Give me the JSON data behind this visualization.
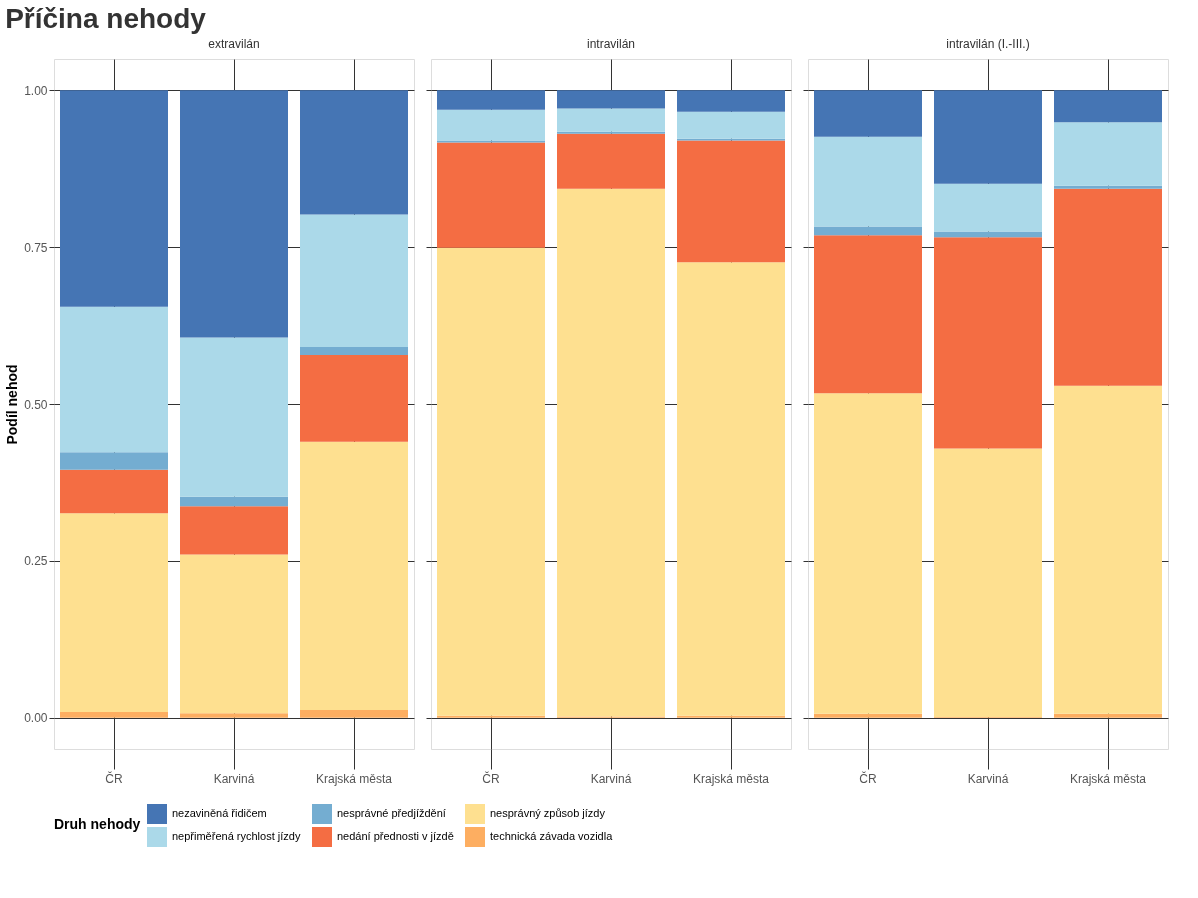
{
  "chart_data": [
    {
      "type": "bar",
      "stacked": true,
      "title": "Příčina nehody",
      "subtitle": "extravilán",
      "ylabel": "Podíl nehod",
      "legend_title": "Druh nehody",
      "legend": "bottom",
      "grid": true,
      "categories": [
        "ČR",
        "Karviná",
        "Krajská města"
      ],
      "ylim": [
        -0.05,
        1.05
      ],
      "yticks": [
        {
          "value": 0,
          "label": "0.00"
        },
        {
          "value": 0.25,
          "label": "0.25"
        },
        {
          "value": 0.5,
          "label": "0.50"
        },
        {
          "value": 0.75,
          "label": "0.75"
        },
        {
          "value": 1,
          "label": "1.00"
        }
      ],
      "series": [
        {
          "name": "technická závada vozidla",
          "color": "#fdae61",
          "values": [
            0.009,
            0.007,
            0.012
          ]
        },
        {
          "name": "nesprávný způsob jízdy",
          "color": "#fee090",
          "values": [
            0.317,
            0.253,
            0.428
          ]
        },
        {
          "name": "nedání přednosti v jízdě",
          "color": "#f46d43",
          "values": [
            0.069,
            0.077,
            0.138
          ]
        },
        {
          "name": "nesprávné předjíždění",
          "color": "#74add1",
          "values": [
            0.028,
            0.015,
            0.013
          ]
        },
        {
          "name": "nepřiměřená rychlost jízdy",
          "color": "#abd9e9",
          "values": [
            0.232,
            0.254,
            0.211
          ]
        },
        {
          "name": "nezaviněná řidičem",
          "color": "#4575b4",
          "values": [
            0.345,
            0.394,
            0.198
          ]
        }
      ]
    },
    {
      "type": "bar",
      "stacked": true,
      "subtitle": "intravilán",
      "legend": "bottom",
      "grid": true,
      "tick_labels": "x",
      "categories": [
        "ČR",
        "Karviná",
        "Krajská města"
      ],
      "ylim": [
        -0.05,
        1.05
      ],
      "yticks": [
        {
          "value": 0,
          "label": null
        },
        {
          "value": 0.25,
          "label": null
        },
        {
          "value": 0.5,
          "label": null
        },
        {
          "value": 0.75,
          "label": null
        },
        {
          "value": 1,
          "label": null
        }
      ],
      "series": [
        {
          "name": "technická závada vozidla",
          "color": "#fdae61",
          "values": [
            0.003,
            0.002,
            0.003
          ]
        },
        {
          "name": "nesprávný způsob jízdy",
          "color": "#fee090",
          "values": [
            0.746,
            0.841,
            0.723
          ]
        },
        {
          "name": "nedání přednosti v jízdě",
          "color": "#f46d43",
          "values": [
            0.168,
            0.088,
            0.194
          ]
        },
        {
          "name": "nesprávné předjíždění",
          "color": "#74add1",
          "values": [
            0.003,
            0.003,
            0.003
          ]
        },
        {
          "name": "nepřiměřená rychlost jízdy",
          "color": "#abd9e9",
          "values": [
            0.049,
            0.037,
            0.043
          ]
        },
        {
          "name": "nezaviněná řidičem",
          "color": "#4575b4",
          "values": [
            0.031,
            0.029,
            0.034
          ]
        }
      ]
    },
    {
      "type": "bar",
      "stacked": true,
      "subtitle": "intravilán (I.-III.)",
      "legend": "bottom",
      "grid": true,
      "tick_labels": "x",
      "categories": [
        "ČR",
        "Karviná",
        "Krajská města"
      ],
      "ylim": [
        -0.05,
        1.05
      ],
      "yticks": [
        {
          "value": 0,
          "label": null
        },
        {
          "value": 0.25,
          "label": null
        },
        {
          "value": 0.5,
          "label": null
        },
        {
          "value": 0.75,
          "label": null
        },
        {
          "value": 1,
          "label": null
        }
      ],
      "series": [
        {
          "name": "technická závada vozidla",
          "color": "#fdae61",
          "values": [
            0.006,
            0.001,
            0.006
          ]
        },
        {
          "name": "nesprávný způsob jízdy",
          "color": "#fee090",
          "values": [
            0.511,
            0.428,
            0.523
          ]
        },
        {
          "name": "nedání přednosti v jízdě",
          "color": "#f46d43",
          "values": [
            0.252,
            0.337,
            0.314
          ]
        },
        {
          "name": "nesprávné předjíždění",
          "color": "#74add1",
          "values": [
            0.014,
            0.009,
            0.005
          ]
        },
        {
          "name": "nepřiměřená rychlost jízdy",
          "color": "#abd9e9",
          "values": [
            0.143,
            0.076,
            0.101
          ]
        },
        {
          "name": "nezaviněná řidičem",
          "color": "#4575b4",
          "values": [
            0.074,
            0.149,
            0.051
          ]
        }
      ]
    }
  ]
}
